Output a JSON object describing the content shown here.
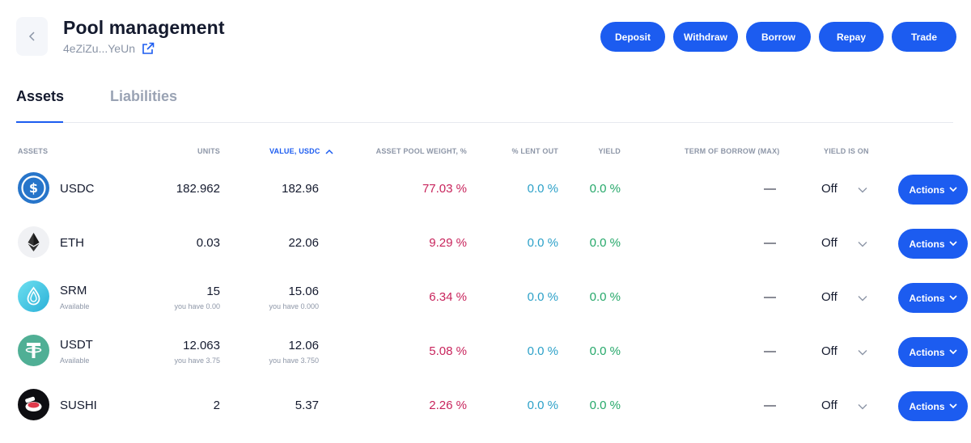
{
  "header": {
    "title": "Pool management",
    "address": "4eZiZu...YeUn"
  },
  "toolbar": {
    "deposit": "Deposit",
    "withdraw": "Withdraw",
    "borrow": "Borrow",
    "repay": "Repay",
    "trade": "Trade"
  },
  "tabs": {
    "assets": "Assets",
    "liabilities": "Liabilities"
  },
  "columns": {
    "assets": "ASSETS",
    "units": "UNITS",
    "value": "VALUE, USDC",
    "weight": "ASSET POOL WEIGHT, %",
    "lent_out": "% LENT OUT",
    "yield": "YIELD",
    "term": "TERM OF BORROW (MAX)",
    "yield_on": "YIELD IS ON"
  },
  "rows": [
    {
      "symbol": "USDC",
      "status": "",
      "units": "182.962",
      "units_sub": "",
      "value": "182.96",
      "value_sub": "",
      "weight": "77.03 %",
      "lent_out": "0.0 %",
      "yield": "0.0 %",
      "term": "—",
      "yield_on": "Off",
      "action": "Actions"
    },
    {
      "symbol": "ETH",
      "status": "",
      "units": "0.03",
      "units_sub": "",
      "value": "22.06",
      "value_sub": "",
      "weight": "9.29 %",
      "lent_out": "0.0 %",
      "yield": "0.0 %",
      "term": "—",
      "yield_on": "Off",
      "action": "Actions"
    },
    {
      "symbol": "SRM",
      "status": "Available",
      "units": "15",
      "units_sub": "you have 0.00",
      "value": "15.06",
      "value_sub": "you have 0.000",
      "weight": "6.34 %",
      "lent_out": "0.0 %",
      "yield": "0.0 %",
      "term": "—",
      "yield_on": "Off",
      "action": "Actions"
    },
    {
      "symbol": "USDT",
      "status": "Available",
      "units": "12.063",
      "units_sub": "you have 3.75",
      "value": "12.06",
      "value_sub": "you have 3.750",
      "weight": "5.08 %",
      "lent_out": "0.0 %",
      "yield": "0.0 %",
      "term": "—",
      "yield_on": "Off",
      "action": "Actions"
    },
    {
      "symbol": "SUSHI",
      "status": "",
      "units": "2",
      "units_sub": "",
      "value": "5.37",
      "value_sub": "",
      "weight": "2.26 %",
      "lent_out": "0.0 %",
      "yield": "0.0 %",
      "term": "—",
      "yield_on": "Off",
      "action": "Actions"
    }
  ],
  "colors": {
    "accent": "#1c5cf0",
    "weight": "#c8245c",
    "lent_out": "#2ba0c8",
    "yield": "#26a86a"
  }
}
